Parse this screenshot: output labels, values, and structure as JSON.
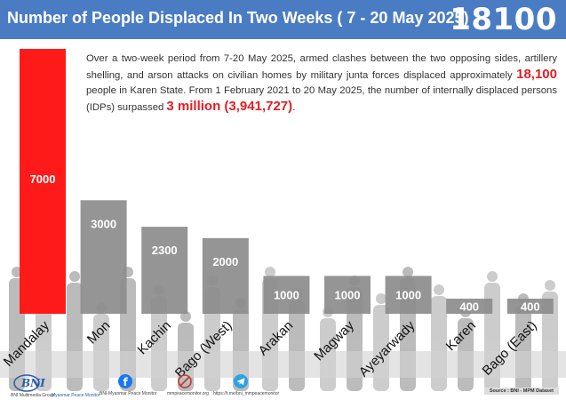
{
  "header": {
    "title": "Number of People Displaced In Two Weeks ( 7 - 20 May 2025)",
    "total": "18100"
  },
  "summary": {
    "text_1": "Over a two-week period from 7-20 May 2025, armed clashes between the two opposing sides, artillery shelling, and arson attacks on civilian homes by military junta forces displaced approximately ",
    "highlight_1": "18,100",
    "text_2": " people in Karen State. From 1 February 2021 to 20 May 2025, the number of internally displaced persons (IDPs) surpassed ",
    "highlight_2": "3 million (3,941,727)",
    "text_3": "."
  },
  "chart_data": {
    "type": "bar",
    "categories": [
      "Mandalay",
      "Mon",
      "Kachin",
      "Bago (West)",
      "Arakan",
      "Magway",
      "Ayeyarwady",
      "Karen",
      "Bago (East)"
    ],
    "values": [
      7000,
      3000,
      2300,
      2000,
      1000,
      1000,
      1000,
      400,
      400
    ],
    "value_labels": [
      "7000",
      "3000",
      "2300",
      "2000",
      "1000",
      "1000",
      "1000",
      "400",
      "400"
    ],
    "highlight_color": "#ff1a1a",
    "bar_color": "#8c8c8c",
    "ylim": [
      0,
      7000
    ]
  },
  "footer": {
    "logo_text": "BNI",
    "org_1": "BNI Multimedia Group",
    "org_2": "Myanmar Peace Monitor",
    "fb": "BNI-Myanmar Peace Monitor",
    "web": "mmpeacemonitor.org",
    "tg": "https://t.me/bni_mmpeacemonitor",
    "source": "Source : BNI - MPM Dataset"
  },
  "icons": [
    "facebook-icon",
    "web-icon",
    "telegram-icon"
  ]
}
